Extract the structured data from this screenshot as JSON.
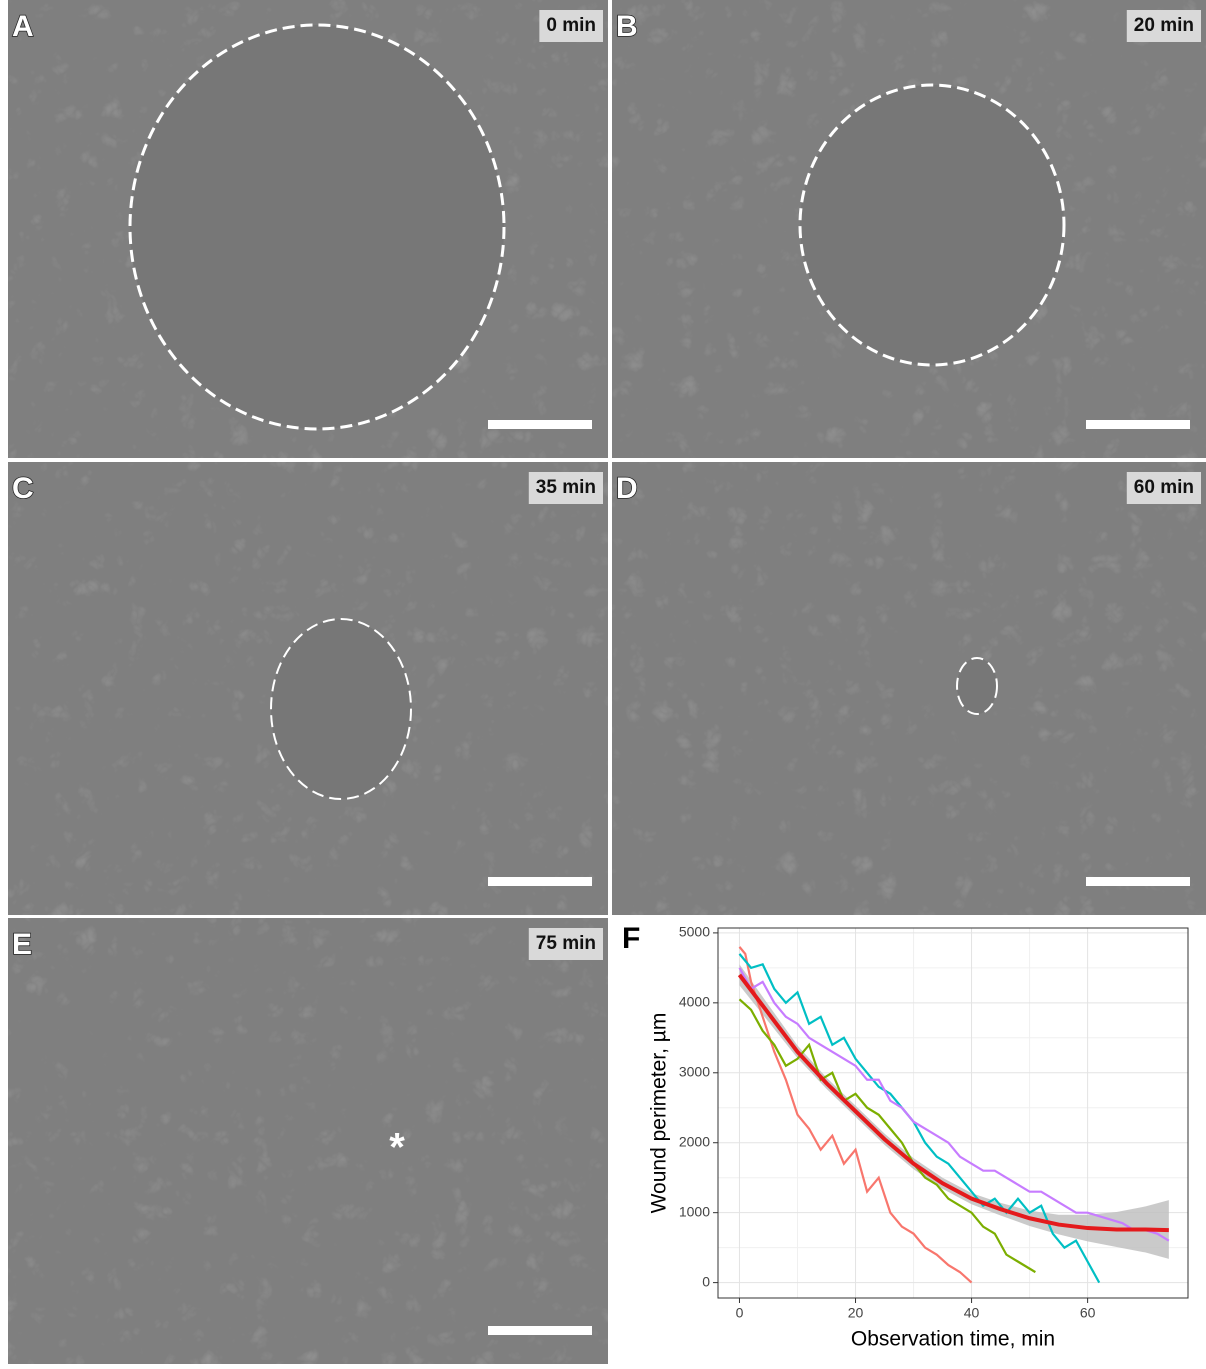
{
  "panels": [
    {
      "label": "A",
      "time": "0 min"
    },
    {
      "label": "B",
      "time": "20 min"
    },
    {
      "label": "C",
      "time": "35 min"
    },
    {
      "label": "D",
      "time": "60 min"
    },
    {
      "label": "E",
      "time": "75 min",
      "marker": "*"
    }
  ],
  "chart_data": {
    "type": "line",
    "label": "F",
    "xlabel": "Observation time, min",
    "ylabel": "Wound perimeter, µm",
    "xlim": [
      -3.7,
      77.3
    ],
    "ylim": [
      -220,
      5070
    ],
    "xticks": [
      0,
      20,
      40,
      60
    ],
    "yticks": [
      0,
      1000,
      2000,
      3000,
      4000,
      5000
    ],
    "grid": true,
    "series": [
      {
        "color": "#F8766D",
        "x": [
          0,
          1,
          2,
          4,
          6,
          8,
          10,
          12,
          14,
          16,
          18,
          20,
          22,
          24,
          26,
          28,
          30,
          32,
          34,
          36,
          38,
          40
        ],
        "values": [
          4800,
          4700,
          4300,
          3800,
          3300,
          2900,
          2400,
          2200,
          1900,
          2100,
          1700,
          1900,
          1300,
          1500,
          1000,
          800,
          700,
          500,
          400,
          250,
          150,
          0
        ]
      },
      {
        "color": "#7CAE00",
        "x": [
          0,
          2,
          4,
          6,
          8,
          10,
          12,
          14,
          16,
          18,
          20,
          22,
          24,
          26,
          28,
          30,
          32,
          34,
          36,
          38,
          40,
          42,
          44,
          46,
          48,
          50,
          51
        ],
        "values": [
          4050,
          3900,
          3600,
          3400,
          3100,
          3200,
          3400,
          2900,
          3000,
          2600,
          2700,
          2500,
          2400,
          2200,
          2000,
          1700,
          1500,
          1400,
          1200,
          1100,
          1000,
          800,
          700,
          400,
          300,
          200,
          150
        ]
      },
      {
        "color": "#00BFC4",
        "x": [
          0,
          2,
          4,
          6,
          8,
          10,
          12,
          14,
          16,
          18,
          20,
          22,
          24,
          26,
          28,
          30,
          32,
          34,
          36,
          38,
          40,
          42,
          44,
          46,
          48,
          50,
          52,
          54,
          56,
          58,
          60,
          62
        ],
        "values": [
          4700,
          4500,
          4550,
          4200,
          4000,
          4150,
          3700,
          3800,
          3400,
          3500,
          3200,
          3000,
          2800,
          2700,
          2500,
          2300,
          2000,
          1800,
          1700,
          1500,
          1300,
          1100,
          1200,
          1000,
          1200,
          1000,
          1100,
          700,
          500,
          600,
          300,
          0
        ]
      },
      {
        "color": "#C77CFF",
        "x": [
          0,
          2,
          4,
          6,
          8,
          10,
          12,
          14,
          16,
          18,
          20,
          22,
          24,
          26,
          28,
          30,
          32,
          34,
          36,
          38,
          40,
          42,
          44,
          46,
          48,
          50,
          52,
          54,
          56,
          58,
          60,
          62,
          64,
          66,
          68,
          70,
          72,
          74
        ],
        "values": [
          4500,
          4200,
          4300,
          4000,
          3800,
          3700,
          3500,
          3400,
          3300,
          3200,
          3100,
          2900,
          2900,
          2600,
          2500,
          2300,
          2200,
          2100,
          2000,
          1800,
          1700,
          1600,
          1600,
          1500,
          1400,
          1300,
          1300,
          1200,
          1100,
          1000,
          1000,
          950,
          900,
          850,
          750,
          750,
          700,
          600
        ]
      }
    ],
    "fit": {
      "color": "#E41A1C",
      "band_color": "#bdbdbd",
      "x": [
        0,
        5,
        10,
        15,
        20,
        25,
        30,
        35,
        40,
        45,
        50,
        55,
        60,
        65,
        70,
        74
      ],
      "values": [
        4400,
        3850,
        3300,
        2850,
        2450,
        2050,
        1700,
        1420,
        1200,
        1050,
        920,
        830,
        780,
        760,
        760,
        750
      ],
      "lower": [
        4250,
        3730,
        3210,
        2770,
        2370,
        1970,
        1620,
        1340,
        1120,
        960,
        810,
        690,
        590,
        510,
        430,
        340
      ],
      "upper": [
        4550,
        3970,
        3390,
        2930,
        2530,
        2130,
        1780,
        1500,
        1280,
        1140,
        1030,
        970,
        970,
        1010,
        1090,
        1180
      ]
    }
  }
}
